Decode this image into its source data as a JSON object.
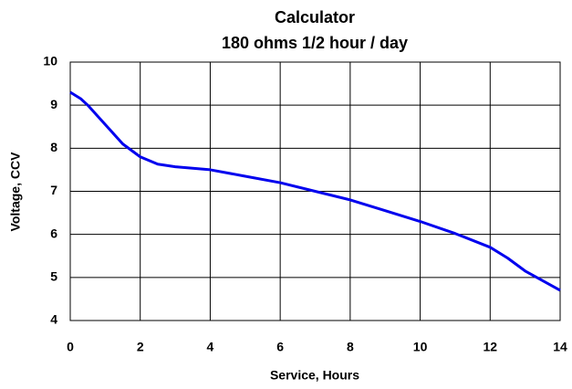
{
  "chart_data": {
    "type": "line",
    "title": "Calculator",
    "subtitle": "180 ohms 1/2 hour / day",
    "x_label": "Service, Hours",
    "y_label": "Voltage, CCV",
    "x": [
      0,
      0.3,
      0.5,
      1,
      1.5,
      2,
      2.5,
      3,
      4,
      5,
      6,
      7,
      8,
      9,
      10,
      11,
      12,
      12.5,
      13,
      14
    ],
    "series": [
      {
        "name": "Voltage",
        "color": "#0000ee",
        "values": [
          9.3,
          9.15,
          9.0,
          8.55,
          8.1,
          7.8,
          7.63,
          7.57,
          7.5,
          7.35,
          7.2,
          7.0,
          6.8,
          6.55,
          6.3,
          6.02,
          5.7,
          5.45,
          5.15,
          4.7
        ]
      }
    ],
    "xlim": [
      0,
      14
    ],
    "xticks": [
      0,
      2,
      4,
      6,
      8,
      10,
      12,
      14
    ],
    "ylim": [
      4,
      10
    ],
    "yticks": [
      4,
      5,
      6,
      7,
      8,
      9,
      10
    ],
    "grid": true
  }
}
